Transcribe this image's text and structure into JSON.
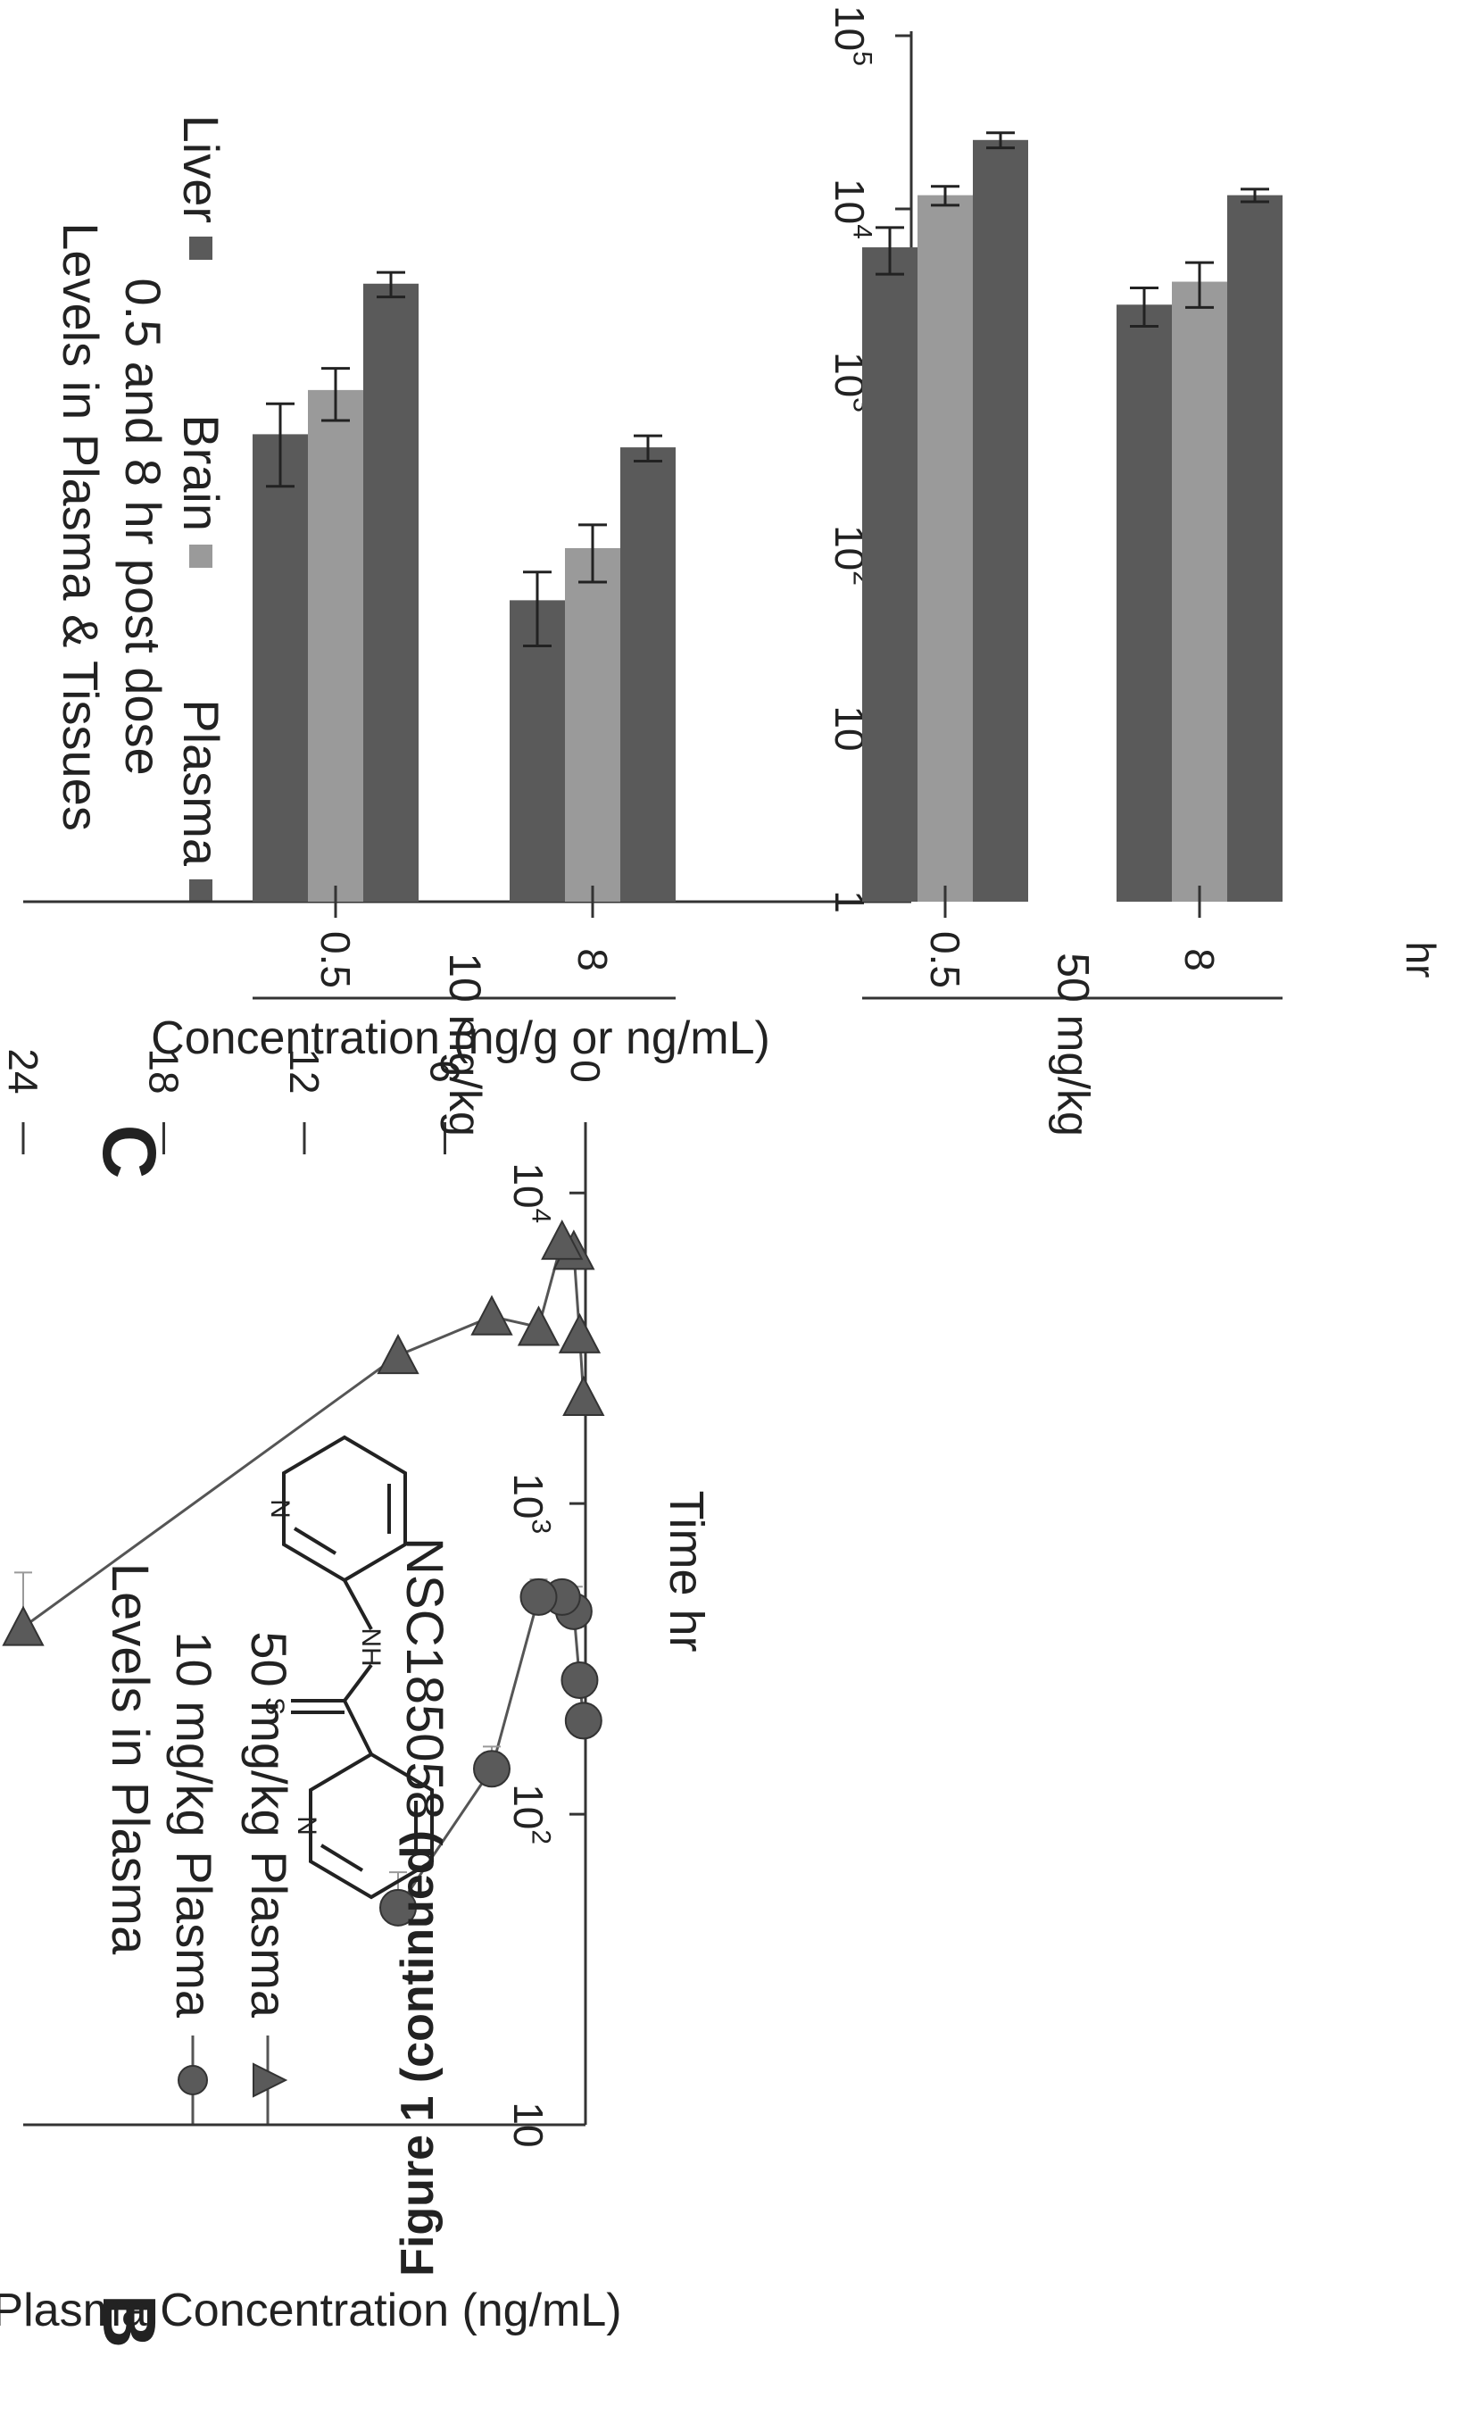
{
  "figure_caption": "Figure 1 (continued)",
  "chart_data": [
    {
      "panel": "B",
      "type": "line",
      "title": "Levels in Plasma",
      "xlabel": "Time hr",
      "ylabel": "Plasma Concentration (ng/mL)",
      "xticks": [
        "0",
        "6",
        "12",
        "18",
        "24"
      ],
      "yticks": [
        "10",
        "10^2",
        "10^3",
        "10^4"
      ],
      "xlim": [
        0,
        24
      ],
      "ylim": [
        10,
        15000
      ],
      "yscale": "log",
      "legend_position": "top",
      "annotation": "NSC185058",
      "structure_atoms": {
        "n1": "N",
        "nh": "NH",
        "s": "S",
        "n2": "N"
      },
      "series": [
        {
          "name": "10 mg/kg  Plasma",
          "marker": "circle",
          "x": [
            0.083,
            0.25,
            0.5,
            1,
            2,
            4,
            8
          ],
          "y": [
            200,
            270,
            450,
            500,
            500,
            140,
            50
          ],
          "err": [
            0,
            0,
            90,
            0,
            70,
            25,
            15
          ]
        },
        {
          "name": "50 mg/kg Plasma",
          "marker": "triangle",
          "x": [
            0.083,
            0.25,
            0.5,
            1,
            2,
            4,
            8,
            24
          ],
          "y": [
            2200,
            3500,
            6500,
            7000,
            3700,
            4000,
            3000,
            400
          ],
          "err": [
            0,
            0,
            0,
            0,
            0,
            0,
            0,
            200
          ]
        }
      ]
    },
    {
      "panel": "C",
      "type": "bar",
      "title": "Levels in Plasma & Tissues",
      "subtitle": "0.5 and 8 hr post dose",
      "ylabel": "Concentration (ng/g or ng/mL)",
      "yticks": [
        "1",
        "10",
        "10^2",
        "10^3",
        "10^4",
        "10^5"
      ],
      "ylim": [
        1,
        100000
      ],
      "yscale": "log",
      "legend_position": "top",
      "unit_label": "hr",
      "categories": [
        "0.5",
        "8",
        "0.5",
        "8"
      ],
      "groups": [
        "10 mg/kg",
        "50 mg/kg"
      ],
      "series": [
        {
          "name": "Plasma",
          "color": "#5a5a5a",
          "values": [
            500,
            55,
            6000,
            2800
          ],
          "err": [
            250,
            25,
            1800,
            700
          ]
        },
        {
          "name": "Brain",
          "color": "#9a9a9a",
          "values": [
            900,
            110,
            12000,
            3800
          ],
          "err": [
            300,
            40,
            1500,
            1100
          ]
        },
        {
          "name": "Liver",
          "color": "#5a5a5a",
          "values": [
            3700,
            420,
            25000,
            12000
          ],
          "err": [
            600,
            70,
            2500,
            1000
          ]
        }
      ]
    }
  ]
}
